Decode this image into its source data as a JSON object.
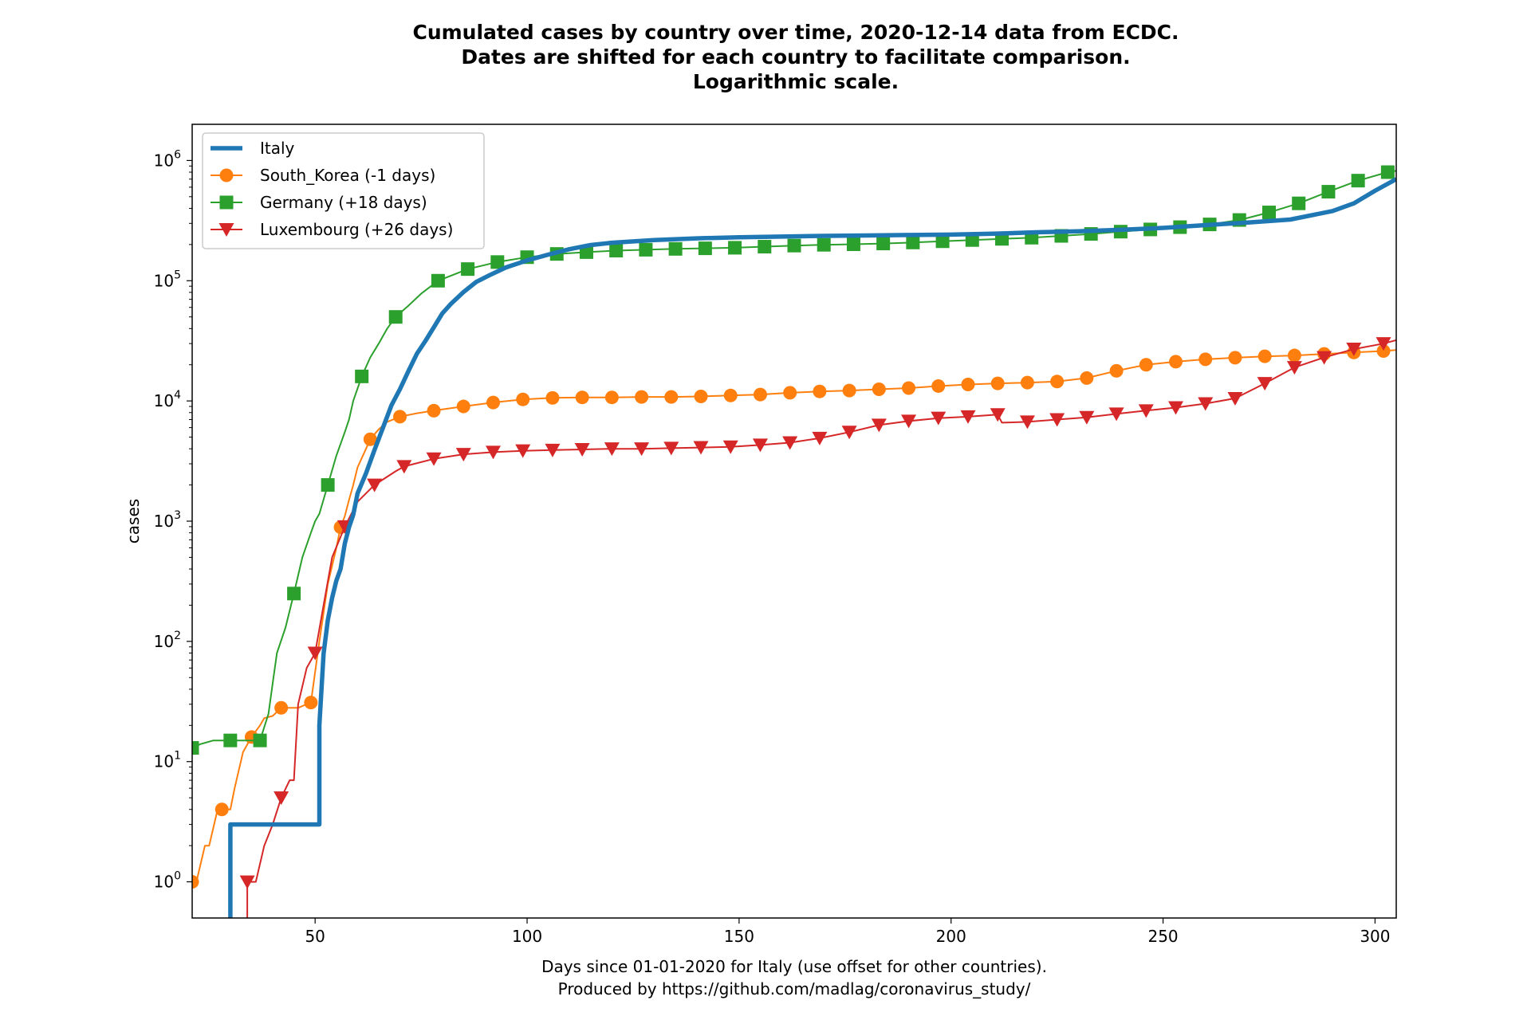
{
  "chart_data": {
    "type": "line",
    "title": [
      "Cumulated cases by country over time, 2020-12-14 data from ECDC.",
      "Dates are shifted for each country to facilitate comparison.",
      "Logarithmic scale."
    ],
    "xlabel": [
      "Days since 01-01-2020 for Italy (use offset for other countries).",
      "Produced by https://github.com/madlag/coronavirus_study/"
    ],
    "ylabel": "cases",
    "xlim": [
      21,
      305
    ],
    "ylim": [
      0.5,
      2000000
    ],
    "yscale": "log",
    "xticks": [
      50,
      100,
      150,
      200,
      250,
      300
    ],
    "yticks": [
      {
        "value": 1,
        "base": "10",
        "exp": "0"
      },
      {
        "value": 10,
        "base": "10",
        "exp": "1"
      },
      {
        "value": 100,
        "base": "10",
        "exp": "2"
      },
      {
        "value": 1000,
        "base": "10",
        "exp": "3"
      },
      {
        "value": 10000,
        "base": "10",
        "exp": "4"
      },
      {
        "value": 100000,
        "base": "10",
        "exp": "5"
      },
      {
        "value": 1000000,
        "base": "10",
        "exp": "6"
      }
    ],
    "grid": false,
    "legend_position": "top-left",
    "series": [
      {
        "name": "Italy",
        "color": "#1f77b4",
        "marker": "none",
        "x": [
          30,
          30,
          51,
          51,
          52,
          53,
          54,
          55,
          56,
          57,
          58,
          59,
          60,
          62,
          64,
          66,
          68,
          70,
          72,
          74,
          76,
          78,
          80,
          82,
          85,
          88,
          91,
          95,
          100,
          105,
          110,
          115,
          120,
          130,
          140,
          150,
          160,
          170,
          180,
          190,
          200,
          210,
          220,
          230,
          240,
          250,
          260,
          270,
          280,
          290,
          295,
          300,
          305
        ],
        "y": [
          0.3,
          3,
          3,
          20,
          79,
          150,
          230,
          320,
          400,
          650,
          890,
          1130,
          1700,
          2500,
          3900,
          6000,
          9200,
          12500,
          17700,
          24700,
          31500,
          41000,
          53500,
          64000,
          80500,
          97700,
          110600,
          128900,
          147600,
          165000,
          183000,
          198000,
          207000,
          218000,
          225000,
          230000,
          233000,
          236000,
          238000,
          240000,
          242000,
          246000,
          253000,
          258000,
          265000,
          275000,
          290000,
          305000,
          323000,
          380000,
          440000,
          560000,
          700000
        ]
      },
      {
        "name": "South_Korea (-1 days)",
        "color": "#ff7f0e",
        "marker": "circle",
        "x": [
          21,
          22,
          24,
          25,
          27,
          28,
          30,
          31,
          33,
          35,
          37,
          38,
          40,
          42,
          44,
          46,
          48,
          49,
          51,
          53,
          55,
          56,
          57,
          58,
          59,
          60,
          62,
          63,
          65,
          67,
          70,
          74,
          78,
          85,
          92,
          99,
          106,
          113,
          120,
          127,
          134,
          141,
          148,
          155,
          162,
          169,
          176,
          183,
          190,
          197,
          204,
          211,
          218,
          225,
          232,
          239,
          246,
          253,
          260,
          267,
          274,
          281,
          288,
          295,
          302,
          305
        ],
        "y": [
          1,
          1,
          2,
          2,
          4,
          4,
          4,
          6,
          12,
          16,
          20,
          23,
          24,
          28,
          28,
          28,
          30,
          31,
          100,
          300,
          600,
          890,
          1100,
          1500,
          2000,
          2800,
          4000,
          4800,
          5800,
          6700,
          7400,
          7900,
          8300,
          9000,
          9700,
          10300,
          10600,
          10700,
          10700,
          10800,
          10800,
          10900,
          11100,
          11300,
          11700,
          12000,
          12200,
          12500,
          12800,
          13300,
          13700,
          14000,
          14200,
          14500,
          15500,
          17800,
          20000,
          21200,
          22200,
          22900,
          23500,
          23900,
          24600,
          25300,
          26000,
          26500
        ]
      },
      {
        "name": "Germany (+18 days)",
        "color": "#2ca02c",
        "marker": "square",
        "x": [
          21,
          23,
          26,
          30,
          33,
          35,
          37,
          39,
          40,
          41,
          43,
          45,
          47,
          49,
          50,
          51,
          53,
          55,
          57,
          58,
          59,
          61,
          63,
          65,
          67,
          69,
          72,
          75,
          79,
          86,
          93,
          100,
          107,
          114,
          121,
          128,
          135,
          142,
          149,
          156,
          163,
          170,
          177,
          184,
          191,
          198,
          205,
          212,
          219,
          226,
          233,
          240,
          247,
          254,
          261,
          268,
          275,
          282,
          289,
          296,
          303,
          305
        ],
        "y": [
          13,
          14,
          15,
          15,
          15,
          15,
          15,
          25,
          45,
          80,
          130,
          250,
          500,
          800,
          1000,
          1150,
          2000,
          3500,
          5500,
          7000,
          10000,
          16000,
          23000,
          30000,
          40000,
          50000,
          62000,
          78000,
          100000,
          125000,
          143000,
          157000,
          167000,
          173000,
          178000,
          181000,
          184000,
          186000,
          188000,
          192000,
          196000,
          199000,
          201000,
          204000,
          208000,
          213000,
          218000,
          223000,
          228000,
          236000,
          245000,
          256000,
          267000,
          279000,
          294000,
          320000,
          370000,
          440000,
          550000,
          680000,
          800000,
          820000
        ]
      },
      {
        "name": "Luxembourg (+26 days)",
        "color": "#d62728",
        "marker": "triangle-down",
        "x": [
          34,
          34,
          36,
          38,
          40,
          42,
          44,
          45,
          46,
          48,
          50,
          52,
          54,
          57,
          60,
          64,
          69,
          71,
          78,
          85,
          92,
          99,
          106,
          113,
          120,
          127,
          134,
          141,
          148,
          155,
          162,
          169,
          176,
          183,
          190,
          197,
          204,
          211,
          212,
          218,
          225,
          232,
          239,
          246,
          253,
          260,
          267,
          274,
          281,
          288,
          295,
          302,
          305
        ],
        "y": [
          0.3,
          1,
          1,
          2,
          3,
          5,
          7,
          7,
          30,
          60,
          80,
          200,
          500,
          900,
          1450,
          2000,
          2600,
          2850,
          3300,
          3600,
          3750,
          3850,
          3900,
          3950,
          4000,
          4000,
          4050,
          4100,
          4150,
          4300,
          4500,
          4900,
          5500,
          6300,
          6800,
          7200,
          7400,
          7700,
          6600,
          6700,
          7000,
          7300,
          7800,
          8300,
          8800,
          9500,
          10500,
          14000,
          19000,
          23000,
          27000,
          30000,
          32000
        ]
      }
    ]
  }
}
